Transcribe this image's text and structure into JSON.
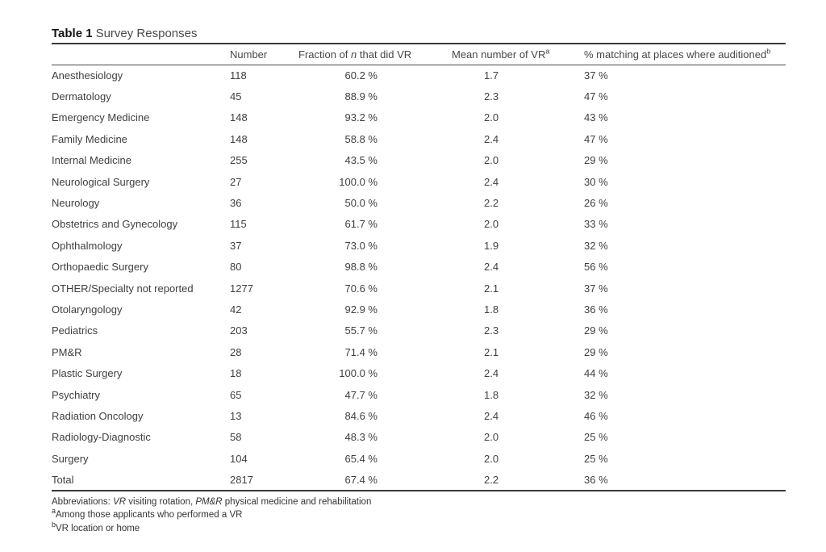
{
  "title": {
    "label": "Table 1",
    "text": "Survey Responses"
  },
  "table": {
    "header": {
      "specialty": "",
      "number": "Number",
      "fraction_prefix": "Fraction of ",
      "fraction_italic": "n",
      "fraction_suffix": " that did VR",
      "mean_text": "Mean number of VR",
      "mean_sup": "a",
      "matching_text": "% matching at places where auditioned",
      "matching_sup": "b"
    },
    "rows": [
      {
        "specialty": "Anesthesiology",
        "number": "118",
        "fraction": "60.2 %",
        "mean": "1.7",
        "matching": "37 %"
      },
      {
        "specialty": "Dermatology",
        "number": "45",
        "fraction": "88.9 %",
        "mean": "2.3",
        "matching": "47 %"
      },
      {
        "specialty": "Emergency Medicine",
        "number": "148",
        "fraction": "93.2 %",
        "mean": "2.0",
        "matching": "43 %"
      },
      {
        "specialty": "Family Medicine",
        "number": "148",
        "fraction": "58.8 %",
        "mean": "2.4",
        "matching": "47 %"
      },
      {
        "specialty": "Internal Medicine",
        "number": "255",
        "fraction": "43.5 %",
        "mean": "2.0",
        "matching": "29 %"
      },
      {
        "specialty": "Neurological Surgery",
        "number": "27",
        "fraction": "100.0 %",
        "mean": "2.4",
        "matching": "30 %"
      },
      {
        "specialty": "Neurology",
        "number": "36",
        "fraction": "50.0 %",
        "mean": "2.2",
        "matching": "26 %"
      },
      {
        "specialty": "Obstetrics and Gynecology",
        "number": "115",
        "fraction": "61.7 %",
        "mean": "2.0",
        "matching": "33 %"
      },
      {
        "specialty": "Ophthalmology",
        "number": "37",
        "fraction": "73.0 %",
        "mean": "1.9",
        "matching": "32 %"
      },
      {
        "specialty": "Orthopaedic Surgery",
        "number": "80",
        "fraction": "98.8 %",
        "mean": "2.4",
        "matching": "56 %"
      },
      {
        "specialty": "OTHER/Specialty not reported",
        "number": "1277",
        "fraction": "70.6 %",
        "mean": "2.1",
        "matching": "37 %"
      },
      {
        "specialty": "Otolaryngology",
        "number": "42",
        "fraction": "92.9 %",
        "mean": "1.8",
        "matching": "36 %"
      },
      {
        "specialty": "Pediatrics",
        "number": "203",
        "fraction": "55.7 %",
        "mean": "2.3",
        "matching": "29 %"
      },
      {
        "specialty": "PM&R",
        "number": "28",
        "fraction": "71.4 %",
        "mean": "2.1",
        "matching": "29 %"
      },
      {
        "specialty": "Plastic Surgery",
        "number": "18",
        "fraction": "100.0 %",
        "mean": "2.4",
        "matching": "44 %"
      },
      {
        "specialty": "Psychiatry",
        "number": "65",
        "fraction": "47.7 %",
        "mean": "1.8",
        "matching": "32 %"
      },
      {
        "specialty": "Radiation Oncology",
        "number": "13",
        "fraction": "84.6 %",
        "mean": "2.4",
        "matching": "46 %"
      },
      {
        "specialty": "Radiology-Diagnostic",
        "number": "58",
        "fraction": "48.3 %",
        "mean": "2.0",
        "matching": "25 %"
      },
      {
        "specialty": "Surgery",
        "number": "104",
        "fraction": "65.4 %",
        "mean": "2.0",
        "matching": "25 %"
      },
      {
        "specialty": "Total",
        "number": "2817",
        "fraction": "67.4 %",
        "mean": "2.2",
        "matching": "36 %"
      }
    ]
  },
  "footnotes": {
    "abbrev_prefix": "Abbreviations: ",
    "abbrev_italic_1": "VR",
    "abbrev_text_1": " visiting rotation, ",
    "abbrev_italic_2": "PM&R",
    "abbrev_text_2": " physical medicine and rehabilitation",
    "note_a_sup": "a",
    "note_a_text": "Among those applicants who performed a VR",
    "note_b_sup": "b",
    "note_b_text": "VR location or home"
  },
  "colors": {
    "page_background": "#ffffff",
    "body_text": "#3f3f3f",
    "title_text": "#141414",
    "rule": "#3a3a3a"
  }
}
